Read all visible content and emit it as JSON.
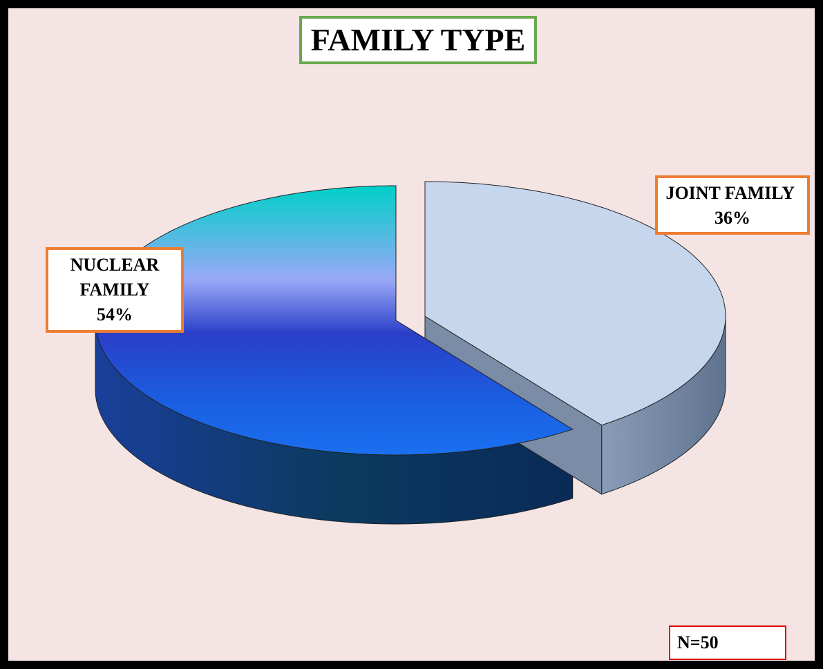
{
  "chart_data": {
    "type": "pie",
    "title": "FAMILY TYPE",
    "categories": [
      "NUCLEAR FAMILY",
      "JOINT FAMILY"
    ],
    "values": [
      54,
      36
    ],
    "value_labels": [
      "54%",
      "36%"
    ],
    "colors": [
      "#1a5ee0",
      "#c6d6ec"
    ],
    "annotation": "N=50"
  }
}
